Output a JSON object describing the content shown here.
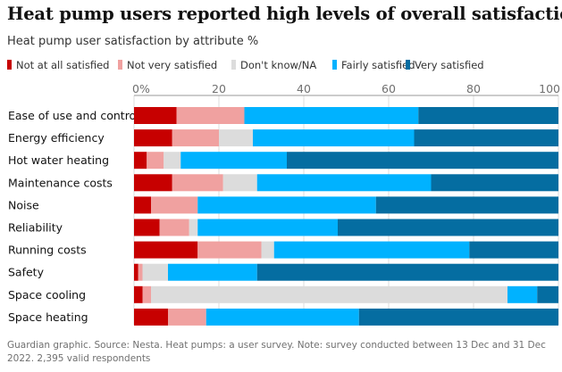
{
  "title": "Heat pump users reported high levels of overall satisfaction",
  "subtitle": "Heat pump user satisfaction by attribute %",
  "footnote": "Guardian graphic. Source: Nesta. Heat pumps: a user survey. Note: survey conducted between 13 Dec and 31 Dec 2022. 2,395 valid respondents",
  "chart_data": {
    "type": "bar",
    "orientation": "horizontal",
    "stacked": true,
    "xlim": [
      0,
      100
    ],
    "ticks": [
      "0%",
      "20",
      "40",
      "60",
      "80",
      "100"
    ],
    "tick_values": [
      0,
      20,
      40,
      60,
      80,
      100
    ],
    "grid": true,
    "legend_position": "top",
    "categories": [
      "Ease of use and control",
      "Energy efficiency",
      "Hot water heating",
      "Maintenance costs",
      "Noise",
      "Reliability",
      "Running costs",
      "Safety",
      "Space cooling",
      "Space heating"
    ],
    "series": [
      {
        "name": "Not at all satisfied",
        "color": "#c70000",
        "values": [
          10,
          9,
          3,
          9,
          4,
          6,
          15,
          1,
          2,
          8
        ]
      },
      {
        "name": "Not very satisfied",
        "color": "#f0a1a0",
        "values": [
          16,
          11,
          4,
          12,
          11,
          7,
          15,
          1,
          2,
          9
        ]
      },
      {
        "name": "Don't know/NA",
        "color": "#dcdcdc",
        "values": [
          0,
          8,
          4,
          8,
          0,
          2,
          3,
          6,
          84,
          0
        ]
      },
      {
        "name": "Fairly satisfied",
        "color": "#00b2ff",
        "values": [
          41,
          38,
          25,
          41,
          42,
          33,
          46,
          21,
          7,
          36
        ]
      },
      {
        "name": "Very satisfied",
        "color": "#056da1",
        "values": [
          33,
          34,
          64,
          30,
          43,
          52,
          21,
          71,
          5,
          47
        ]
      }
    ]
  }
}
